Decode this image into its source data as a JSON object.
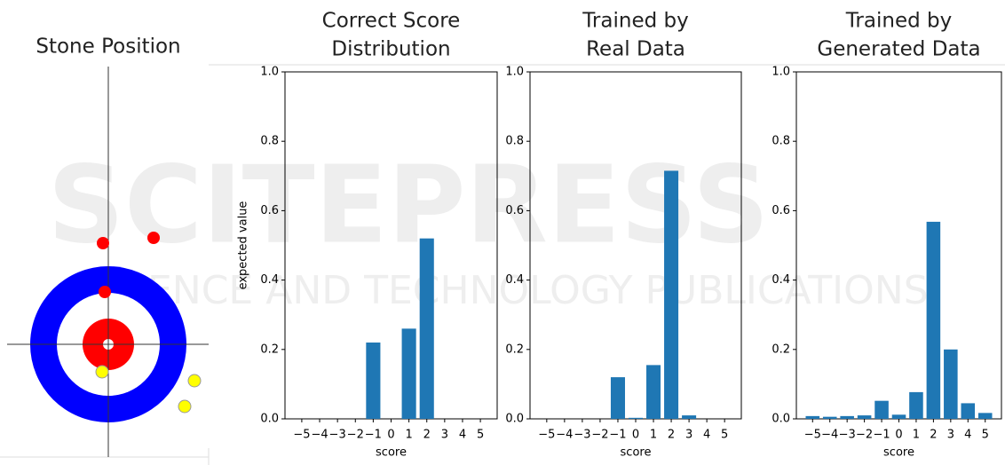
{
  "diagram": {
    "title": "Stone Position"
  },
  "watermark": [
    "SCITEPRESS",
    "SCIENCE AND TECHNOLOGY PUBLICATIONS"
  ],
  "chart_data": [
    {
      "type": "bar",
      "title": [
        "Correct Score",
        "Distribution"
      ],
      "x_label": "score",
      "y_label": "expected value",
      "color": "#1f77b4",
      "categories": [
        "−5",
        "−4",
        "−3",
        "−2",
        "−1",
        "0",
        "1",
        "2",
        "3",
        "4",
        "5"
      ],
      "values": [
        0,
        0,
        0,
        0,
        0.22,
        0,
        0.26,
        0.52,
        0,
        0,
        0
      ],
      "ylim": [
        0,
        1
      ],
      "yticks": [
        {
          "value": 0,
          "label": "0.0"
        },
        {
          "value": 0.2,
          "label": "0.2"
        },
        {
          "value": 0.4,
          "label": "0.4"
        },
        {
          "value": 0.6,
          "label": "0.6"
        },
        {
          "value": 0.8,
          "label": "0.8"
        },
        {
          "value": 1,
          "label": "1.0"
        }
      ]
    },
    {
      "type": "bar",
      "title": [
        "Trained by",
        "Real Data"
      ],
      "x_label": "score",
      "color": "#1f77b4",
      "categories": [
        "−5",
        "−4",
        "−3",
        "−2",
        "−1",
        "0",
        "1",
        "2",
        "3",
        "4",
        "5"
      ],
      "values": [
        0,
        0,
        0,
        0,
        0.12,
        0.003,
        0.155,
        0.715,
        0.01,
        0,
        0
      ],
      "ylim": [
        0,
        1
      ],
      "yticks": [
        {
          "value": 0,
          "label": "0.0"
        },
        {
          "value": 0.2,
          "label": "0.2"
        },
        {
          "value": 0.4,
          "label": "0.4"
        },
        {
          "value": 0.6,
          "label": "0.6"
        },
        {
          "value": 0.8,
          "label": "0.8"
        },
        {
          "value": 1,
          "label": "1.0"
        }
      ]
    },
    {
      "type": "bar",
      "title": [
        "Trained by",
        "Generated Data"
      ],
      "x_label": "score",
      "color": "#1f77b4",
      "categories": [
        "−5",
        "−4",
        "−3",
        "−2",
        "−1",
        "0",
        "1",
        "2",
        "3",
        "4",
        "5"
      ],
      "values": [
        0.008,
        0.006,
        0.008,
        0.01,
        0.052,
        0.012,
        0.077,
        0.568,
        0.2,
        0.045,
        0.017
      ],
      "ylim": [
        0,
        1
      ],
      "yticks": [
        {
          "value": 0,
          "label": "0.0"
        },
        {
          "value": 0.2,
          "label": "0.2"
        },
        {
          "value": 0.4,
          "label": "0.4"
        },
        {
          "value": 0.6,
          "label": "0.6"
        },
        {
          "value": 0.8,
          "label": "0.8"
        },
        {
          "value": 1,
          "label": "1.0"
        }
      ]
    }
  ]
}
